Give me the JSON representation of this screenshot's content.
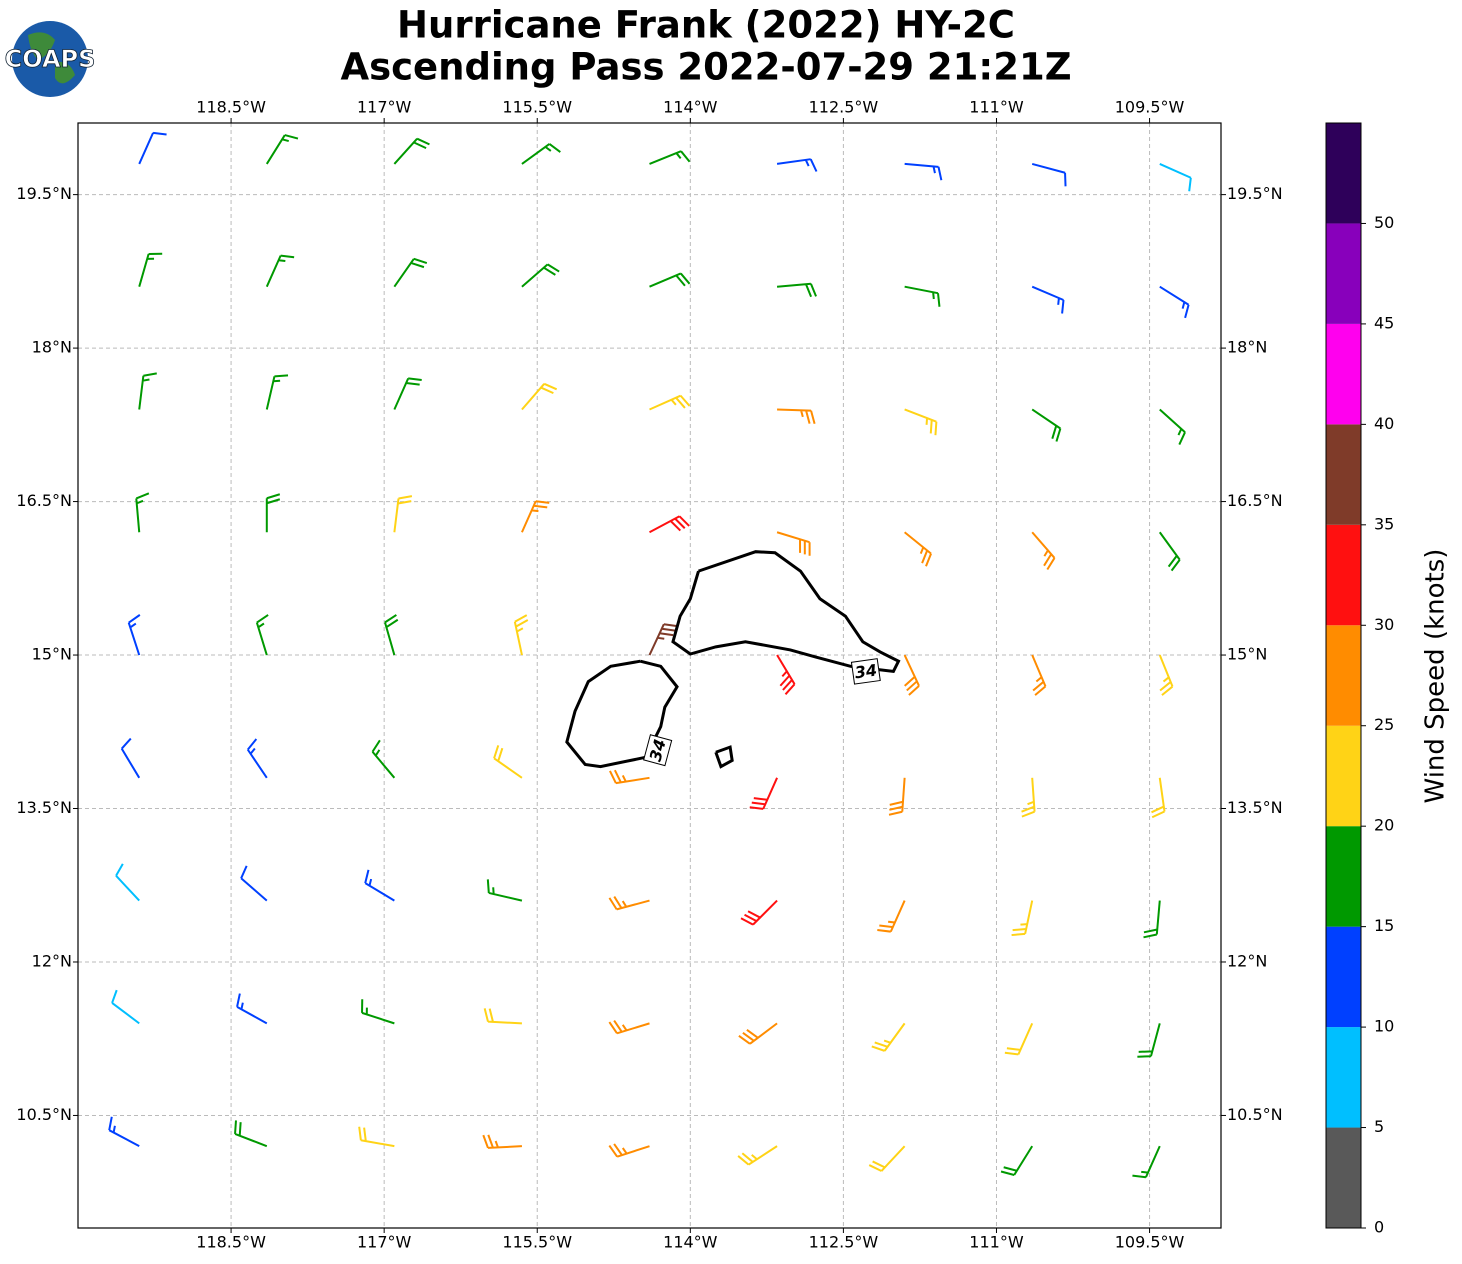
{
  "chart_data": {
    "type": "barbs",
    "title": [
      "Hurricane Frank (2022) HY-2C",
      "Ascending Pass 2022-07-29 21:21Z"
    ],
    "logo": "COAPS",
    "xlim": [
      -120,
      -108.8
    ],
    "ylim": [
      9.4,
      20.2
    ],
    "xticks": [
      {
        "value": -118.5,
        "label": "118.5°W"
      },
      {
        "value": -117,
        "label": "117°W"
      },
      {
        "value": -115.5,
        "label": "115.5°W"
      },
      {
        "value": -114,
        "label": "114°W"
      },
      {
        "value": -112.5,
        "label": "112.5°W"
      },
      {
        "value": -111,
        "label": "111°W"
      },
      {
        "value": -109.5,
        "label": "109.5°W"
      }
    ],
    "yticks": [
      {
        "value": 19.5,
        "label": "19.5°N"
      },
      {
        "value": 18,
        "label": "18°N"
      },
      {
        "value": 16.5,
        "label": "16.5°N"
      },
      {
        "value": 15,
        "label": "15°N"
      },
      {
        "value": 13.5,
        "label": "13.5°N"
      },
      {
        "value": 12,
        "label": "12°N"
      },
      {
        "value": 10.5,
        "label": "10.5°N"
      }
    ],
    "grid": true,
    "barbs": {
      "lon": [
        -119.4,
        -118.15,
        -116.9,
        -115.65,
        -114.4,
        -113.15,
        -111.9,
        -110.65,
        -109.4
      ],
      "lat": [
        19.8,
        18.6,
        17.4,
        16.2,
        15.0,
        13.8,
        12.6,
        11.4,
        10.2
      ],
      "speed": [
        [
          12,
          17,
          18,
          17,
          17,
          13,
          13,
          12,
          9
        ],
        [
          16,
          17,
          18,
          18,
          19,
          18,
          17,
          14,
          13
        ],
        [
          16,
          17,
          18,
          21,
          23,
          26,
          24,
          19,
          17
        ],
        [
          17,
          18,
          21,
          26,
          32,
          28,
          26,
          25,
          19
        ],
        [
          14,
          16,
          19,
          24,
          37,
          33,
          28,
          26,
          23
        ],
        [
          11,
          13,
          17,
          22,
          26,
          31,
          28,
          24,
          22
        ],
        [
          8,
          12,
          14,
          17,
          27,
          31,
          27,
          23,
          19
        ],
        [
          9,
          13,
          17,
          21,
          27,
          28,
          24,
          21,
          18
        ],
        [
          13,
          18,
          22,
          26,
          27,
          24,
          22,
          19,
          17
        ]
      ],
      "direction": [
        [
          24,
          32,
          42,
          54,
          68,
          82,
          95,
          105,
          114
        ],
        [
          16,
          24,
          35,
          49,
          67,
          85,
          101,
          113,
          122
        ],
        [
          7,
          13,
          24,
          41,
          66,
          92,
          111,
          124,
          132
        ],
        [
          355,
          0,
          7,
          24,
          62,
          107,
          129,
          139,
          144
        ],
        [
          342,
          343,
          344,
          348,
          25,
          149,
          155,
          157,
          158
        ],
        [
          329,
          326,
          320,
          305,
          261,
          204,
          184,
          176,
          172
        ],
        [
          317,
          311,
          301,
          283,
          255,
          225,
          204,
          192,
          185
        ],
        [
          307,
          299,
          288,
          273,
          253,
          233,
          216,
          204,
          195
        ],
        [
          298,
          291,
          280,
          267,
          252,
          237,
          223,
          212,
          204
        ]
      ]
    },
    "contours": [
      {
        "level": 34,
        "lon": [
          -113.92,
          -113.36,
          -113.17,
          -112.92,
          -112.73,
          -112.48,
          -112.31,
          -112.14,
          -111.96,
          -112.01,
          -112.43,
          -112.77,
          -113.02,
          -113.46,
          -113.75,
          -114.0,
          -114.17,
          -114.1,
          -114.0,
          -113.92
        ],
        "lat": [
          15.82,
          16.01,
          16.0,
          15.82,
          15.55,
          15.38,
          15.13,
          15.03,
          14.94,
          14.84,
          14.89,
          14.98,
          15.05,
          15.13,
          15.08,
          15.01,
          15.13,
          15.38,
          15.55,
          15.82
        ],
        "label_lon": -112.28,
        "label_lat": 14.84
      },
      {
        "level": 34,
        "lon": [
          -114.49,
          -114.29,
          -114.13,
          -114.25,
          -114.29,
          -114.44,
          -114.88,
          -115.03,
          -115.21,
          -115.13,
          -115.0,
          -114.78,
          -114.49
        ],
        "lat": [
          14.94,
          14.89,
          14.69,
          14.49,
          14.3,
          14.0,
          13.91,
          13.93,
          14.15,
          14.45,
          14.74,
          14.89,
          14.94
        ],
        "label_lon": -114.32,
        "label_lat": 14.07
      },
      {
        "level": 34,
        "lon": [
          -113.75,
          -113.61,
          -113.59,
          -113.7,
          -113.75
        ],
        "lat": [
          14.05,
          14.1,
          13.97,
          13.91,
          14.05
        ]
      }
    ],
    "colorbar": {
      "label": "Wind Speed (knots)",
      "lim": [
        0,
        55
      ],
      "levels": [
        0,
        5,
        10,
        15,
        20,
        25,
        30,
        35,
        40,
        45,
        50,
        55
      ],
      "colors": [
        "#595959",
        "#00bfff",
        "#0040ff",
        "#009900",
        "#ffd316",
        "#ff8c00",
        "#ff1010",
        "#7f3b29",
        "#ff00ee",
        "#8800bb",
        "#2e005a"
      ],
      "ticks": [
        0,
        5,
        10,
        15,
        20,
        25,
        30,
        35,
        40,
        45,
        50
      ]
    }
  }
}
